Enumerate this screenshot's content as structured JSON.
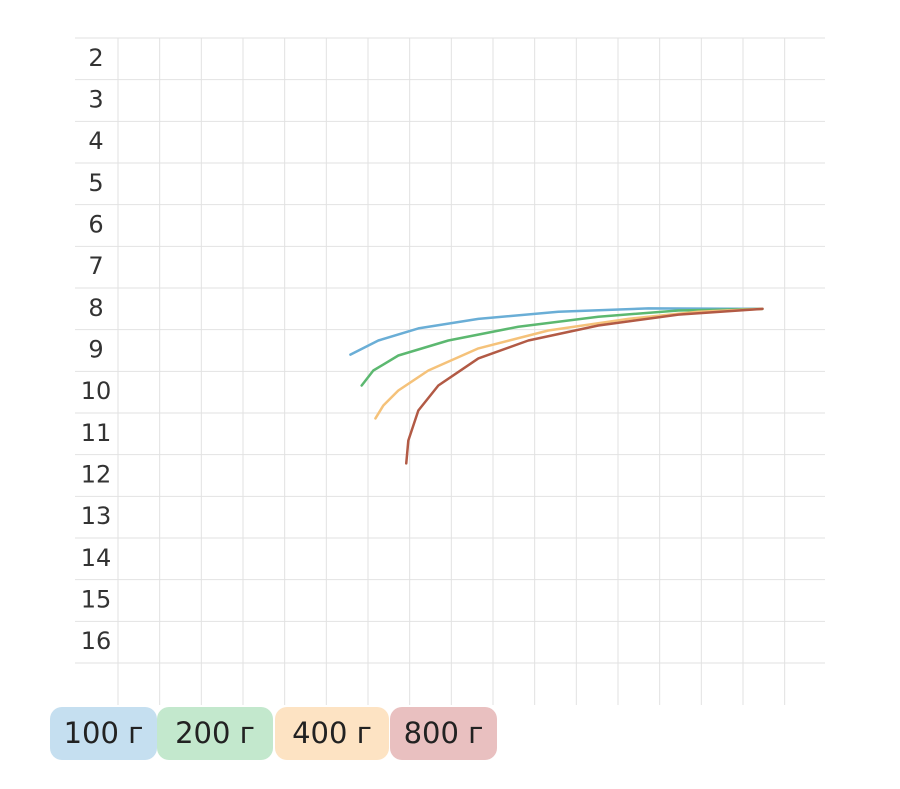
{
  "chart_data": {
    "type": "line",
    "xlim": [
      -1,
      17
    ],
    "ylim": [
      1.5,
      16.5
    ],
    "y_inverted": true,
    "yticks": [
      2,
      3,
      4,
      5,
      6,
      7,
      8,
      9,
      10,
      11,
      12,
      13,
      14,
      15,
      16
    ],
    "series": [
      {
        "name": "100 г",
        "color": "#6aaed6",
        "legend_color": "#c5dff0",
        "x": [
          5.61,
          6.28,
          7.24,
          8.68,
          10.6,
          12.76,
          15.5
        ],
        "values": [
          9.1,
          8.76,
          8.47,
          8.24,
          8.07,
          7.99,
          8.0
        ]
      },
      {
        "name": "200 г",
        "color": "#5cb870",
        "legend_color": "#c3e8cd",
        "x": [
          5.88,
          6.16,
          6.76,
          7.96,
          9.64,
          11.56,
          13.48,
          15.5
        ],
        "values": [
          9.84,
          9.48,
          9.12,
          8.76,
          8.43,
          8.19,
          8.04,
          8.0
        ]
      },
      {
        "name": "400 г",
        "color": "#f5c27a",
        "legend_color": "#fde3c3",
        "x": [
          6.21,
          6.4,
          6.76,
          7.48,
          8.68,
          10.36,
          12.28,
          13.96,
          15.5
        ],
        "values": [
          10.63,
          10.32,
          9.96,
          9.48,
          8.95,
          8.52,
          8.24,
          8.07,
          8.0
        ]
      },
      {
        "name": "800 г",
        "color": "#b25a45",
        "legend_color": "#e9c0c0",
        "x": [
          6.95,
          7.0,
          7.24,
          7.72,
          8.68,
          9.88,
          11.56,
          13.48,
          15.5
        ],
        "values": [
          11.71,
          11.16,
          10.44,
          9.84,
          9.19,
          8.76,
          8.4,
          8.14,
          8.0
        ]
      }
    ]
  }
}
